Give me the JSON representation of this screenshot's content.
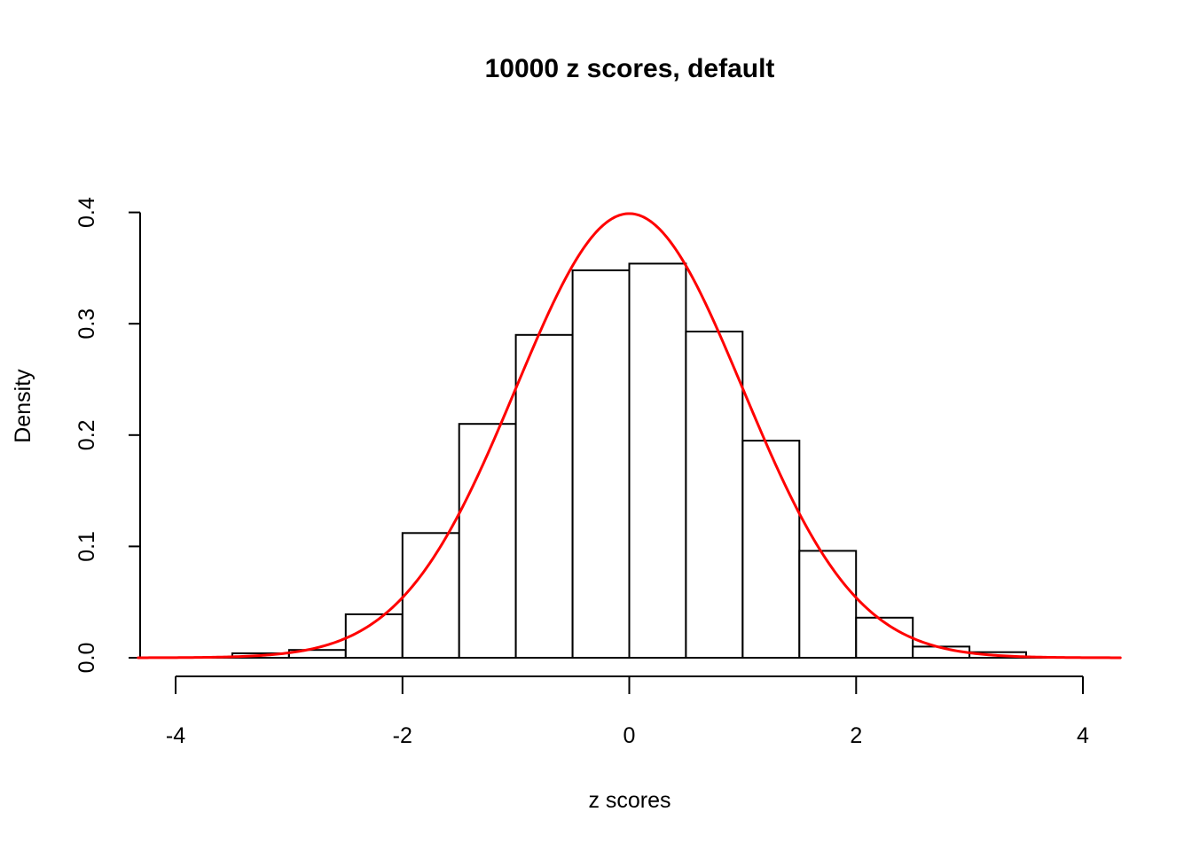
{
  "title": "10000 z scores, default",
  "chart_data": {
    "type": "bar",
    "subtype": "histogram-with-density-curve",
    "title": "10000 z scores, default",
    "xlabel": "z scores",
    "ylabel": "Density",
    "xlim": [
      -4.33,
      4.33
    ],
    "ylim": [
      0,
      0.4
    ],
    "x_ticks": [
      -4,
      -2,
      0,
      2,
      4
    ],
    "x_tick_labels": [
      "-4",
      "-2",
      "0",
      "2",
      "4"
    ],
    "y_ticks": [
      0.0,
      0.1,
      0.2,
      0.3,
      0.4
    ],
    "y_tick_labels": [
      "0.0",
      "0.1",
      "0.2",
      "0.3",
      "0.4"
    ],
    "bin_width": 0.5,
    "bin_edges": [
      -4,
      -3.5,
      -3,
      -2.5,
      -2,
      -1.5,
      -1,
      -0.5,
      0,
      0.5,
      1,
      1.5,
      2,
      2.5,
      3,
      3.5,
      4
    ],
    "densities": [
      0,
      0.004,
      0.007,
      0.039,
      0.112,
      0.21,
      0.29,
      0.348,
      0.354,
      0.293,
      0.195,
      0.096,
      0.036,
      0.01,
      0.005,
      0
    ],
    "bar_fill": "#FFFFFF",
    "bar_stroke": "#000000",
    "axis_color": "#000000",
    "curve": {
      "name": "standard-normal-density",
      "mean": 0,
      "sd": 1,
      "peak": 0.3989,
      "color": "#FF0000"
    },
    "grid": false,
    "legend": null,
    "background": "#FFFFFF"
  }
}
